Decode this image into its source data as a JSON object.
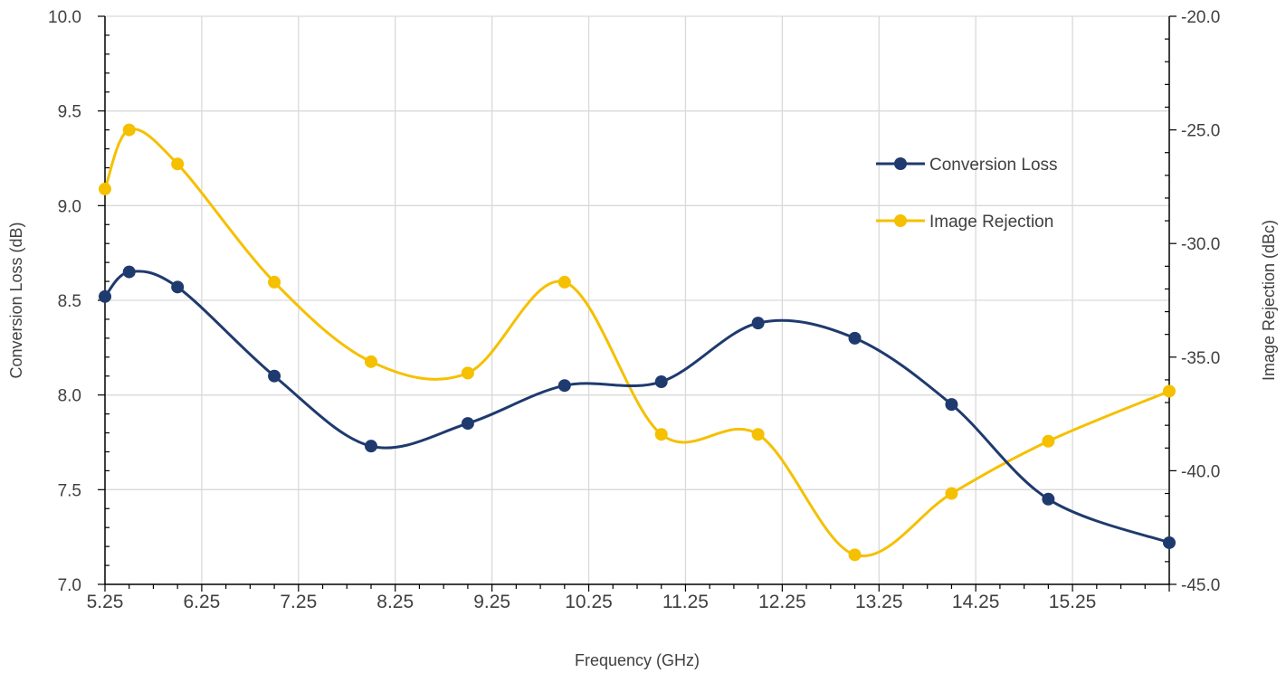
{
  "chart_data": {
    "type": "line",
    "smooth": true,
    "grid": true,
    "legend_position": "right",
    "xlabel": "Frequency (GHz)",
    "ylabel": "Conversion Loss (dB)",
    "y2label": "Image Rejection (dBc)",
    "xlim": [
      5.25,
      16.25
    ],
    "xticks": [
      "5.25",
      "6.25",
      "7.25",
      "8.25",
      "9.25",
      "10.25",
      "11.25",
      "12.25",
      "13.25",
      "14.25",
      "15.25"
    ],
    "ylim": [
      7.0,
      10.0
    ],
    "yticks": [
      "7.0",
      "7.5",
      "8.0",
      "8.5",
      "9.0",
      "9.5",
      "10.0"
    ],
    "y2lim": [
      -45.0,
      -20.0
    ],
    "y2ticks": [
      "-45.0",
      "-40.0",
      "-35.0",
      "-30.0",
      "-25.0",
      "-20.0"
    ],
    "x": [
      5.25,
      5.5,
      6,
      7,
      8,
      9,
      10,
      11,
      12,
      13,
      14,
      15,
      16.25
    ],
    "series": [
      {
        "name": "Conversion Loss",
        "axis": "left",
        "color": "#1f3a6e",
        "values": [
          8.52,
          8.65,
          8.57,
          8.1,
          7.73,
          7.85,
          8.05,
          8.07,
          8.38,
          8.3,
          7.95,
          7.45,
          7.22
        ]
      },
      {
        "name": "Image Rejection",
        "axis": "right",
        "color": "#f5c000",
        "values": [
          -27.6,
          -25.0,
          -26.5,
          -31.7,
          -35.2,
          -35.7,
          -31.7,
          -38.4,
          -38.4,
          -43.7,
          -41.0,
          -38.7,
          -36.5
        ]
      }
    ]
  }
}
